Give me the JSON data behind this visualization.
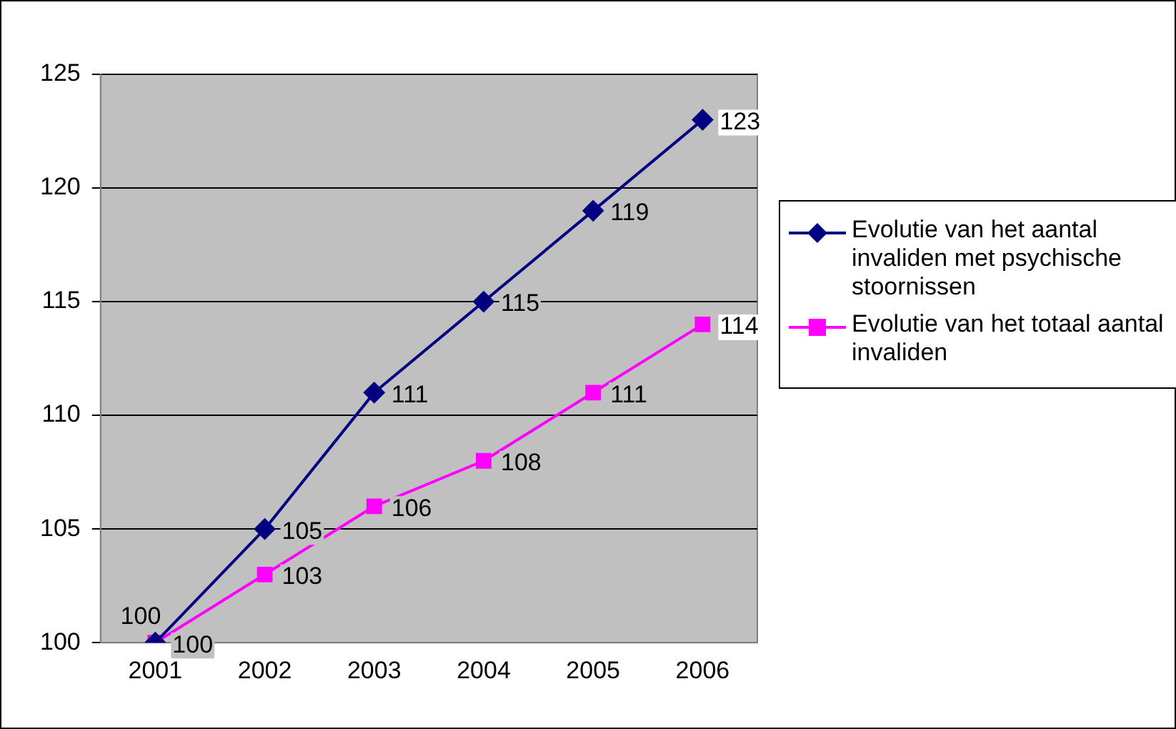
{
  "chart_data": {
    "type": "line",
    "categories": [
      "2001",
      "2002",
      "2003",
      "2004",
      "2005",
      "2006"
    ],
    "series": [
      {
        "name": "Evolutie van het aantal invaliden met psychische stoornissen",
        "color": "#000080",
        "marker": "diamond",
        "values": [
          100,
          105,
          111,
          115,
          119,
          123
        ]
      },
      {
        "name": "Evolutie van het totaal aantal invaliden",
        "color": "#ff00ff",
        "marker": "square",
        "values": [
          100,
          103,
          106,
          108,
          111,
          114
        ]
      }
    ],
    "ylim": [
      100,
      125
    ],
    "yticks": [
      100,
      105,
      110,
      115,
      120,
      125
    ],
    "grid": "y",
    "legend": "right",
    "data_labels": true,
    "line_style": "solid"
  }
}
